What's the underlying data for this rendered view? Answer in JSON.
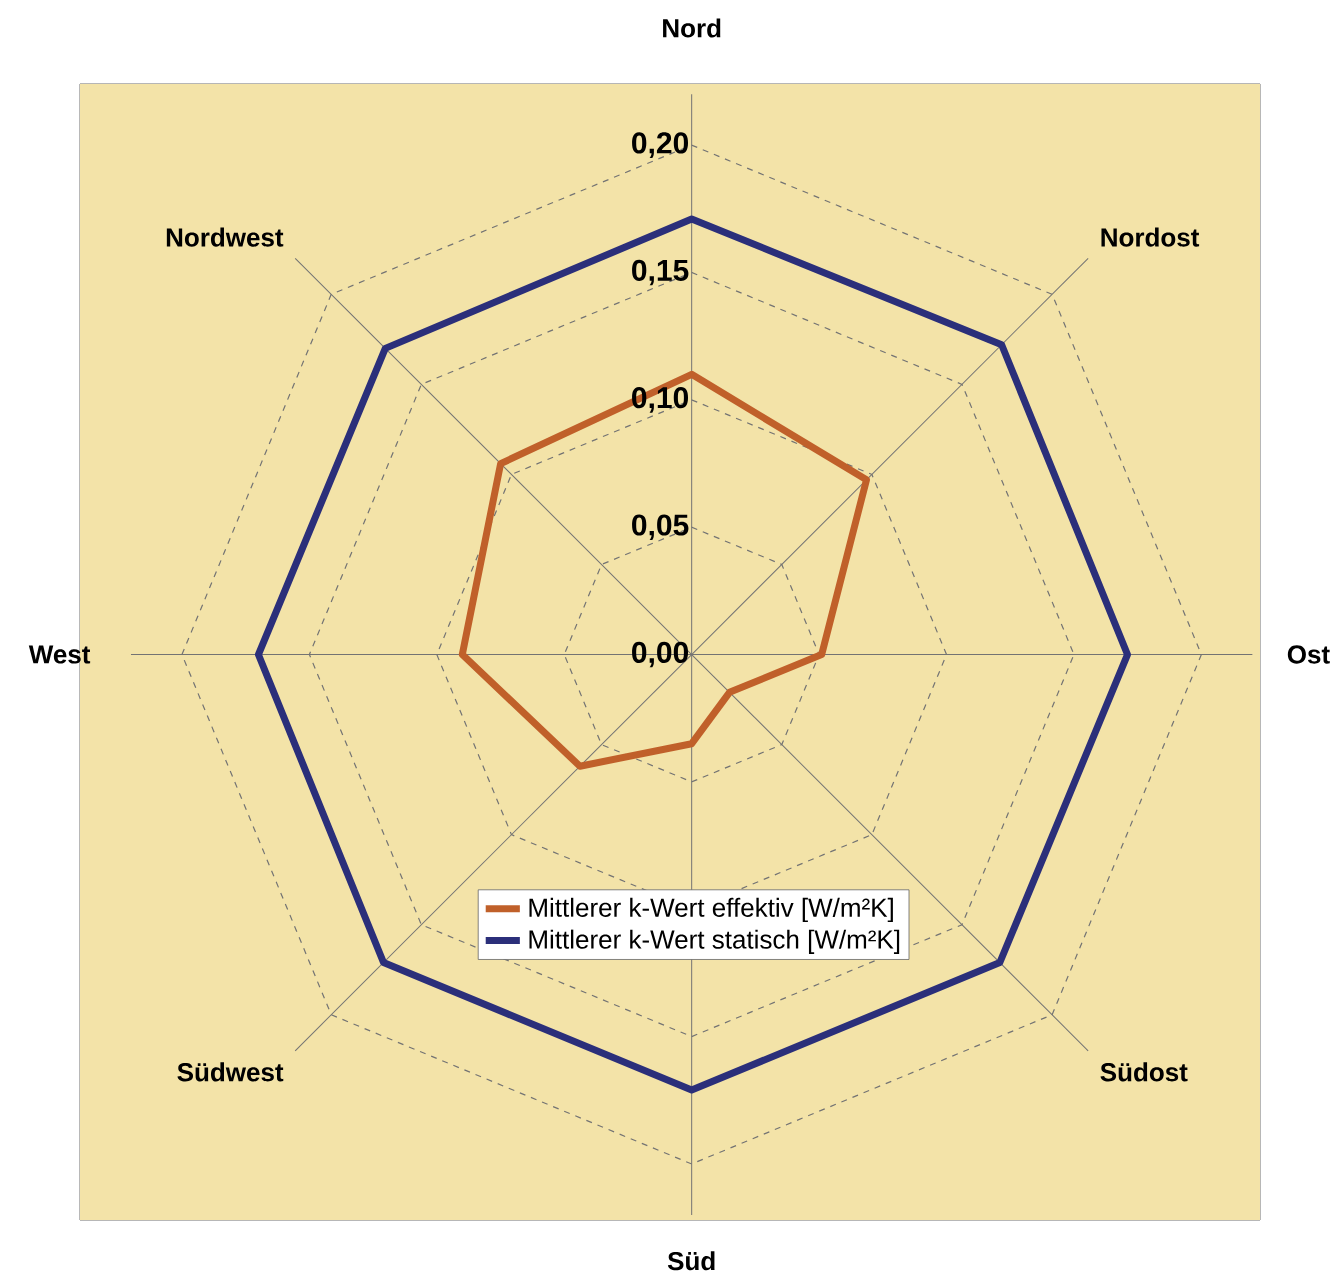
{
  "chart_data": {
    "type": "radar",
    "categories": [
      "Nord",
      "Nordost",
      "Ost",
      "Südost",
      "Süd",
      "Südwest",
      "West",
      "Nordwest"
    ],
    "series": [
      {
        "name": "Mittlerer k-Wert effektiv [W/m²K]",
        "color": "#c0602a",
        "values": [
          0.11,
          0.097,
          0.051,
          0.021,
          0.035,
          0.062,
          0.09,
          0.106
        ]
      },
      {
        "name": "Mittlerer k-Wert statisch [W/m²K]",
        "color": "#2b2f7a",
        "values": [
          0.171,
          0.172,
          0.171,
          0.171,
          0.171,
          0.171,
          0.17,
          0.17
        ]
      }
    ],
    "ylim": [
      0,
      0.2
    ],
    "yticks": [
      {
        "value": 0,
        "label": "0,00"
      },
      {
        "value": 0.05,
        "label": "0,05"
      },
      {
        "value": 0.1,
        "label": "0,10"
      },
      {
        "value": 0.15,
        "label": "0,15"
      },
      {
        "value": 0.2,
        "label": "0,20"
      }
    ],
    "grid": true,
    "legend": "bottom",
    "marker": "none",
    "line_style": "solid"
  }
}
